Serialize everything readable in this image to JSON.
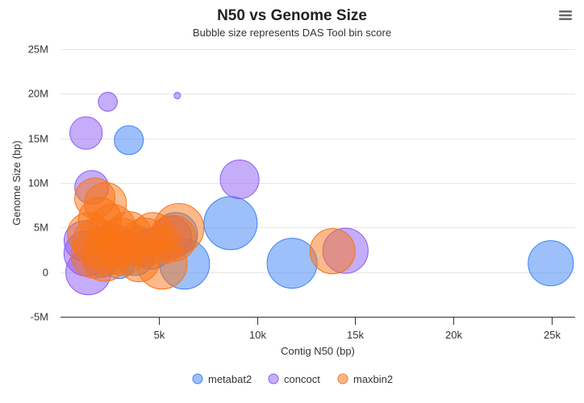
{
  "chart_data": {
    "type": "bubble",
    "title": "N50 vs Genome Size",
    "subtitle": "Bubble size represents DAS Tool bin score",
    "xlabel": "Contig N50 (bp)",
    "ylabel": "Genome Size (bp)",
    "xlim": [
      0,
      26200
    ],
    "ylim": [
      -5000000,
      25000000
    ],
    "xticks": [
      {
        "v": 5000,
        "label": "5k"
      },
      {
        "v": 10000,
        "label": "10k"
      },
      {
        "v": 15000,
        "label": "15k"
      },
      {
        "v": 20000,
        "label": "20k"
      },
      {
        "v": 25000,
        "label": "25k"
      }
    ],
    "yticks": [
      {
        "v": -5000000,
        "label": "-5M"
      },
      {
        "v": 0,
        "label": "0"
      },
      {
        "v": 5000000,
        "label": "5M"
      },
      {
        "v": 10000000,
        "label": "10M"
      },
      {
        "v": 15000000,
        "label": "15M"
      },
      {
        "v": 20000000,
        "label": "20M"
      },
      {
        "v": 25000000,
        "label": "25M"
      }
    ],
    "grid": true,
    "legend_position": "bottom",
    "size_label": "DAS Tool bin score",
    "series": [
      {
        "name": "metabat2",
        "color": "#3b82f6",
        "points": [
          [
            3480,
            14800000,
            0.28
          ],
          [
            8660,
            5500000,
            0.94
          ],
          [
            11790,
            1000000,
            0.83
          ],
          [
            24960,
            1000000,
            0.68
          ],
          [
            6320,
            900000,
            0.83
          ],
          [
            5870,
            4250000,
            0.63
          ],
          [
            2990,
            1100000,
            0.35
          ],
          [
            3800,
            1800000,
            0.5
          ],
          [
            2100,
            1500000,
            0.45
          ],
          [
            4600,
            2600000,
            0.55
          ]
        ]
      },
      {
        "name": "concoct",
        "color": "#8b5cf6",
        "points": [
          [
            2410,
            19100000,
            0.12
          ],
          [
            5950,
            19800000,
            0.01
          ],
          [
            1300,
            15600000,
            0.35
          ],
          [
            9120,
            10400000,
            0.5
          ],
          [
            14510,
            2400000,
            0.68
          ],
          [
            1590,
            9500000,
            0.38
          ],
          [
            1420,
            0,
            0.68
          ],
          [
            1210,
            3500000,
            0.54
          ],
          [
            1330,
            2100000,
            0.68
          ],
          [
            2700,
            3000000,
            0.6
          ],
          [
            4000,
            2900000,
            0.5
          ],
          [
            5600,
            3900000,
            0.6
          ]
        ]
      },
      {
        "name": "maxbin2",
        "color": "#f97316",
        "points": [
          [
            13850,
            2350000,
            0.68
          ],
          [
            6030,
            4900000,
            0.83
          ],
          [
            5170,
            900000,
            0.83
          ],
          [
            2290,
            7700000,
            0.58
          ],
          [
            1750,
            8300000,
            0.54
          ],
          [
            4300,
            3350000,
            0.78
          ],
          [
            1850,
            3350000,
            0.78
          ],
          [
            3070,
            3350000,
            0.78
          ],
          [
            2650,
            5000000,
            0.7
          ],
          [
            1440,
            4300000,
            0.6
          ],
          [
            2260,
            1550000,
            0.7
          ],
          [
            3480,
            4300000,
            0.65
          ],
          [
            4710,
            4300000,
            0.6
          ],
          [
            5740,
            3800000,
            0.7
          ],
          [
            2000,
            6000000,
            0.6
          ],
          [
            3200,
            2000000,
            0.6
          ],
          [
            4000,
            1200000,
            0.55
          ],
          [
            1700,
            1900000,
            0.7
          ],
          [
            2500,
            2500000,
            0.8
          ],
          [
            5200,
            3100000,
            0.5
          ]
        ]
      }
    ]
  },
  "menu_icon": "hamburger-menu-icon"
}
